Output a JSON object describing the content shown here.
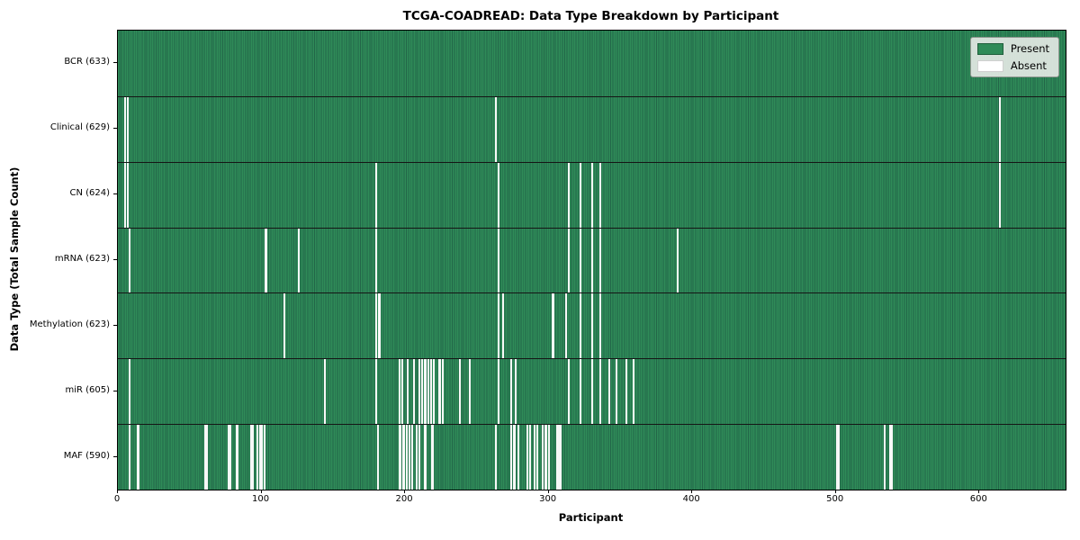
{
  "title": "TCGA-COADREAD: Data Type Breakdown by Participant",
  "xlabel": "Participant",
  "ylabel": "Data Type (Total Sample Count)",
  "legend": {
    "present_label": "Present",
    "absent_label": "Absent"
  },
  "colors": {
    "present_green": "#2f8b58",
    "present_edge_green": "#226648",
    "absent_white": "#f7f8f7",
    "legend_background": "#e4e8e4"
  },
  "chart_data": {
    "type": "heatmap",
    "title": "TCGA-COADREAD: Data Type Breakdown by Participant",
    "xlabel": "Participant",
    "ylabel": "Data Type (Total Sample Count)",
    "legend": [
      "Present",
      "Absent"
    ],
    "legend_position": "upper right",
    "grid": false,
    "total_participants": 633,
    "x_ticks": [
      0,
      100,
      200,
      300,
      400,
      500,
      600
    ],
    "x_axis_max": 660,
    "rows": [
      {
        "label": "BCR (633)",
        "data_type": "BCR",
        "present_count": 633,
        "absent_participants": []
      },
      {
        "label": "Clinical (629)",
        "data_type": "Clinical",
        "present_count": 629,
        "absent_participants": [
          5,
          7,
          263,
          614
        ]
      },
      {
        "label": "CN (624)",
        "data_type": "CN",
        "present_count": 624,
        "absent_participants": [
          5,
          7,
          180,
          265,
          314,
          322,
          330,
          336,
          614
        ]
      },
      {
        "label": "mRNA (623)",
        "data_type": "mRNA",
        "present_count": 623,
        "absent_participants": [
          8,
          103,
          126,
          180,
          265,
          314,
          322,
          330,
          336,
          390
        ]
      },
      {
        "label": "Methylation (623)",
        "data_type": "Methylation",
        "present_count": 623,
        "absent_participants": [
          116,
          180,
          182,
          265,
          268,
          303,
          312,
          322,
          330,
          336
        ]
      },
      {
        "label": "miR (605)",
        "data_type": "miR",
        "present_count": 605,
        "absent_participants": [
          8,
          144,
          180,
          196,
          198,
          202,
          206,
          210,
          212,
          214,
          216,
          218,
          220,
          224,
          226,
          238,
          245,
          265,
          274,
          277,
          314,
          322,
          330,
          336,
          342,
          347,
          354,
          359
        ]
      },
      {
        "label": "MAF (590)",
        "data_type": "MAF",
        "present_count": 590,
        "absent_participants": [
          8,
          14,
          61,
          62,
          77,
          78,
          83,
          93,
          94,
          97,
          99,
          100,
          102,
          181,
          196,
          197,
          199,
          201,
          203,
          205,
          208,
          210,
          214,
          219,
          263,
          274,
          276,
          279,
          285,
          287,
          290,
          292,
          296,
          298,
          300,
          306,
          307,
          308,
          501,
          502,
          534,
          538,
          539
        ]
      }
    ]
  }
}
